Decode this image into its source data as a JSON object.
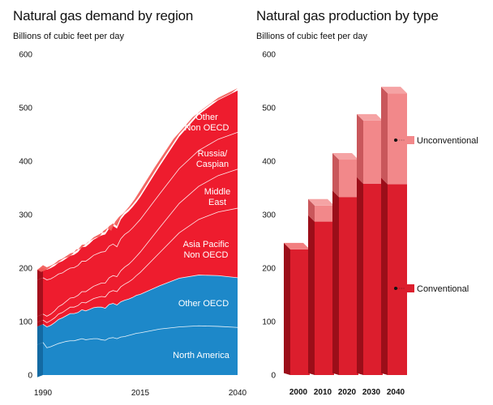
{
  "chart_data": [
    {
      "type": "area",
      "title": "Natural gas demand by region",
      "ylabel": "Billions of cubic feet per day",
      "ylim": [
        0,
        600
      ],
      "yticks": [
        0,
        100,
        200,
        300,
        400,
        500,
        600
      ],
      "xlim": [
        1990,
        2040
      ],
      "xticks": [
        1990,
        2015,
        2040
      ],
      "stacked": true,
      "x": [
        1990,
        1991,
        1992,
        1993,
        1994,
        1995,
        1996,
        1997,
        1998,
        1999,
        2000,
        2001,
        2002,
        2003,
        2004,
        2005,
        2006,
        2007,
        2008,
        2009,
        2010,
        2011,
        2012,
        2013,
        2014,
        2015,
        2020,
        2025,
        2030,
        2035,
        2040
      ],
      "series": [
        {
          "name": "North America",
          "color": "#1d88c9",
          "values": [
            61,
            51,
            53,
            56,
            59,
            61,
            63,
            64,
            64,
            66,
            68,
            66,
            67,
            68,
            68,
            66,
            65,
            69,
            70,
            68,
            71,
            72,
            74,
            76,
            78,
            79,
            86,
            90,
            92,
            91,
            89
          ]
        },
        {
          "name": "Other OECD",
          "color": "#1d88c9",
          "values": [
            34,
            39,
            40,
            42,
            45,
            46,
            48,
            51,
            51,
            51,
            54,
            54,
            56,
            58,
            59,
            61,
            60,
            63,
            64,
            63,
            66,
            68,
            68,
            69,
            71,
            72,
            81,
            91,
            95,
            95,
            93
          ]
        },
        {
          "name": "Asia Pacific Non OECD",
          "color": "#ee1c2e",
          "values": [
            8,
            8,
            9,
            9,
            10,
            10,
            11,
            12,
            12,
            13,
            14,
            15,
            16,
            17,
            18,
            20,
            21,
            23,
            24,
            25,
            28,
            30,
            32,
            34,
            37,
            41,
            62,
            85,
            104,
            119,
            130
          ]
        },
        {
          "name": "Middle East",
          "color": "#ee1c2e",
          "values": [
            11,
            12,
            12,
            13,
            14,
            15,
            16,
            17,
            18,
            19,
            20,
            21,
            22,
            23,
            24,
            25,
            26,
            27,
            28,
            28,
            30,
            32,
            33,
            35,
            36,
            38,
            47,
            55,
            62,
            68,
            73
          ]
        },
        {
          "name": "Russia/ Caspian",
          "color": "#ee1c2e",
          "values": [
            68,
            68,
            66,
            64,
            61,
            59,
            58,
            56,
            56,
            56,
            57,
            57,
            57,
            58,
            58,
            58,
            59,
            59,
            59,
            56,
            60,
            61,
            61,
            61,
            61,
            61,
            63,
            65,
            67,
            68,
            69
          ]
        },
        {
          "name": "Other Non OECD",
          "color": "#ee1c2e",
          "values": [
            19,
            19,
            20,
            20,
            21,
            22,
            22,
            23,
            24,
            25,
            26,
            27,
            28,
            29,
            30,
            31,
            32,
            33,
            34,
            34,
            36,
            37,
            38,
            39,
            40,
            42,
            52,
            60,
            67,
            73,
            78
          ]
        }
      ]
    },
    {
      "type": "bar",
      "title": "Natural gas production by type",
      "ylabel": "Billions of cubic feet per day",
      "ylim": [
        0,
        600
      ],
      "yticks": [
        0,
        100,
        200,
        300,
        400,
        500,
        600
      ],
      "categories": [
        "2000",
        "2010",
        "2020",
        "2030",
        "2040"
      ],
      "stacked": true,
      "series": [
        {
          "name": "Conventional",
          "color": "#dc1e2d",
          "values": [
            235,
            287,
            333,
            358,
            357
          ]
        },
        {
          "name": "Unconventional",
          "color": "#f2888a",
          "values": [
            0,
            30,
            70,
            118,
            170
          ]
        }
      ]
    }
  ]
}
